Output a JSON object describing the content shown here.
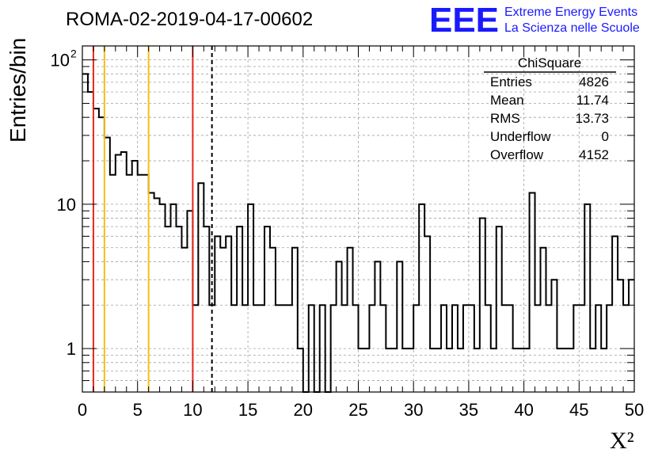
{
  "header": {
    "run_title": "ROMA-02-2019-04-17-00602",
    "logo_text": "EEE",
    "logo_line1": "Extreme Energy Events",
    "logo_line2": "La Scienza nelle Scuole"
  },
  "stats_box": {
    "name": "ChiSquare",
    "rows": [
      {
        "label": "Entries",
        "value": "4826"
      },
      {
        "label": "Mean",
        "value": "11.74"
      },
      {
        "label": "RMS",
        "value": "13.73"
      },
      {
        "label": "Underflow",
        "value": "0"
      },
      {
        "label": "Overflow",
        "value": "4152"
      }
    ]
  },
  "colors": {
    "histogram": "#000000",
    "red_line": "#e8261d",
    "yellow_line": "#f5be1a",
    "logo_blue": "#1a1aff",
    "grid": "#a0a0a0"
  },
  "chart_data": {
    "type": "histogram",
    "xlabel": "X²",
    "ylabel": "Entries/bin",
    "xlim": [
      0,
      50
    ],
    "ylim": [
      0.5,
      125
    ],
    "yscale": "log",
    "grid": true,
    "bin_width": 0.5,
    "x_ticks": [
      "0",
      "5",
      "10",
      "15",
      "20",
      "25",
      "30",
      "35",
      "40",
      "45",
      "50"
    ],
    "x_tick_values": [
      0,
      5,
      10,
      15,
      20,
      25,
      30,
      35,
      40,
      45,
      50
    ],
    "y_tick_labels": [
      {
        "value": 1,
        "label": "1"
      },
      {
        "value": 10,
        "label": "10"
      },
      {
        "value": 100,
        "label": "10",
        "sup": "2"
      }
    ],
    "counts": [
      80,
      60,
      46,
      40,
      29,
      16,
      22,
      23,
      16,
      20,
      16,
      16,
      12,
      11,
      10,
      7,
      10,
      7,
      5,
      9,
      2,
      14,
      7,
      2,
      6,
      5,
      6,
      2,
      7,
      2,
      10,
      2,
      2,
      7,
      5,
      2,
      2,
      2,
      5,
      1,
      0,
      2,
      0,
      2,
      0,
      2,
      4,
      2,
      5,
      2,
      1,
      1,
      2,
      4,
      2,
      1,
      1,
      4,
      1,
      1,
      2,
      10,
      6,
      1,
      1,
      2,
      1,
      2,
      1,
      2,
      2,
      1,
      8,
      2,
      1,
      7,
      2,
      2,
      1,
      1,
      1,
      12,
      2,
      5,
      2,
      3,
      1,
      1,
      1,
      2,
      2,
      10,
      1,
      2,
      1,
      2,
      6,
      3,
      2,
      3
    ],
    "reference_lines": [
      {
        "x": 1,
        "style": "solid",
        "color": "red"
      },
      {
        "x": 2,
        "style": "solid",
        "color": "yellow"
      },
      {
        "x": 6,
        "style": "solid",
        "color": "yellow"
      },
      {
        "x": 10,
        "style": "solid",
        "color": "red"
      },
      {
        "x": 11.74,
        "style": "dashed",
        "color": "black"
      }
    ]
  }
}
